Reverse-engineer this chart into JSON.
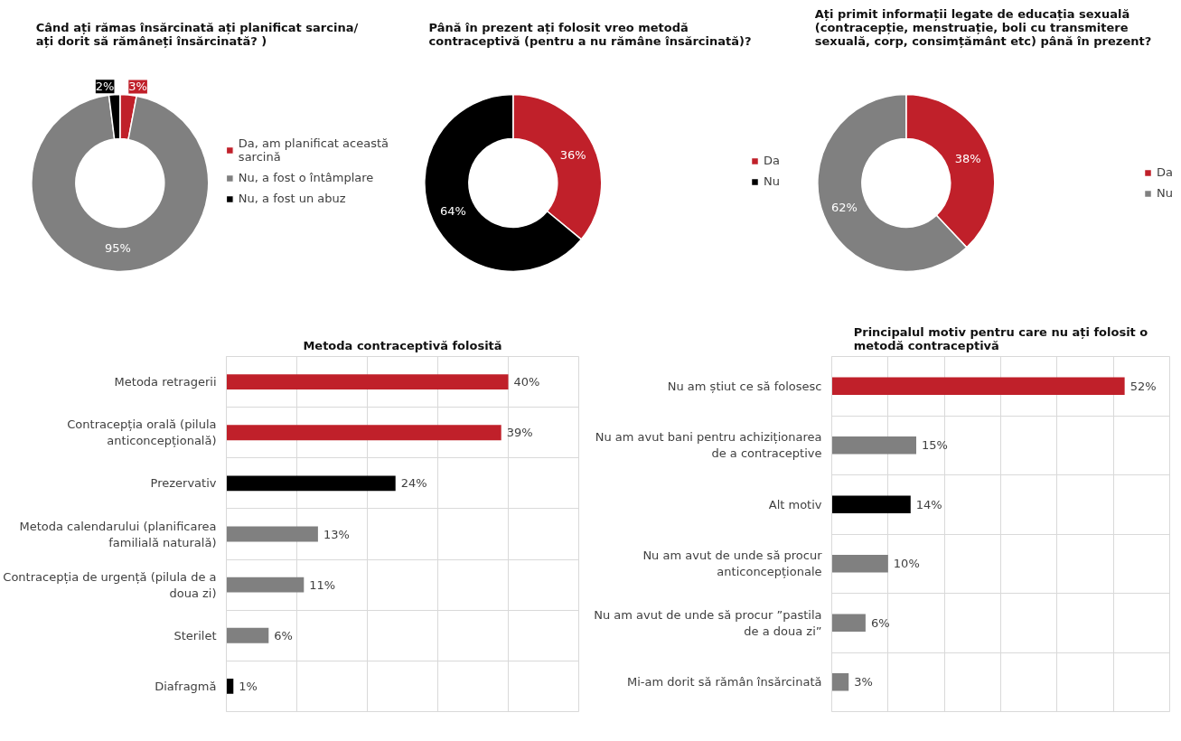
{
  "chart_data": [
    {
      "type": "donut",
      "title": "Când ați rămas însărcinată ați planificat sarcina/ ați dorit să rămâneți însărcinată? )",
      "categories": [
        "Da, am planificat această sarcină",
        "Nu, a fost o întâmplare",
        "Nu, a fost un abuz"
      ],
      "values": [
        3,
        95,
        2
      ],
      "colors": [
        "#c0202a",
        "#808080",
        "#000000"
      ],
      "value_labels": [
        "3%",
        "95%",
        "2%"
      ],
      "legend": "right"
    },
    {
      "type": "donut",
      "title": "Până în prezent ați folosit vreo metodă contraceptivă (pentru a nu rămâne însărcinată)?",
      "categories": [
        "Da",
        "Nu"
      ],
      "values": [
        36,
        64
      ],
      "colors": [
        "#c0202a",
        "#000000"
      ],
      "value_labels": [
        "36%",
        "64%"
      ],
      "legend": "right"
    },
    {
      "type": "donut",
      "title": "Ați primit informații legate de educația sexuală (contracepție, menstruație, boli cu transmitere sexuală, corp, consimțământ etc) până în prezent?",
      "categories": [
        "Da",
        "Nu"
      ],
      "values": [
        38,
        62
      ],
      "colors": [
        "#c0202a",
        "#808080"
      ],
      "value_labels": [
        "38%",
        "62%"
      ],
      "legend": "right"
    },
    {
      "type": "bar",
      "orientation": "horizontal",
      "title": "Metoda contraceptivă folosită",
      "categories": [
        "Metoda retragerii",
        "Contracepția orală (pilula anticoncepțională)",
        "Prezervativ",
        "Metoda calendarului (planificarea familială naturală)",
        "Contracepția de urgență (pilula de a doua zi)",
        "Sterilet",
        "Diafragmă"
      ],
      "values": [
        40,
        39,
        24,
        13,
        11,
        6,
        1
      ],
      "colors": [
        "#c0202a",
        "#c0202a",
        "#000000",
        "#808080",
        "#808080",
        "#808080",
        "#000000"
      ],
      "value_labels": [
        "40%",
        "39%",
        "24%",
        "13%",
        "11%",
        "6%",
        "1%"
      ],
      "xlim": [
        0,
        50
      ],
      "xticks": [
        {
          "value": 0,
          "label": null
        },
        {
          "value": 10,
          "label": null
        },
        {
          "value": 20,
          "label": null
        },
        {
          "value": 30,
          "label": null
        },
        {
          "value": 40,
          "label": null
        },
        {
          "value": 50,
          "label": null
        }
      ],
      "grid": true,
      "tick_labels": "y"
    },
    {
      "type": "bar",
      "orientation": "horizontal",
      "title": "Principalul motiv pentru care nu ați folosit o metodă contraceptivă",
      "categories": [
        "Nu am știut ce să folosesc",
        "Nu am avut bani pentru achiziționarea de a contraceptive",
        "Alt motiv",
        "Nu am avut de unde să procur anticoncepționale",
        "Nu am avut de unde să procur ”pastila de a doua zi”",
        "Mi-am dorit să rămân însărcinată"
      ],
      "values": [
        52,
        15,
        14,
        10,
        6,
        3
      ],
      "colors": [
        "#c0202a",
        "#808080",
        "#000000",
        "#808080",
        "#808080",
        "#808080"
      ],
      "value_labels": [
        "52%",
        "15%",
        "14%",
        "10%",
        "6%",
        "3%"
      ],
      "xlim": [
        0,
        60
      ],
      "xticks": [
        {
          "value": 0,
          "label": null
        },
        {
          "value": 10,
          "label": null
        },
        {
          "value": 20,
          "label": null
        },
        {
          "value": 30,
          "label": null
        },
        {
          "value": 40,
          "label": null
        },
        {
          "value": 50,
          "label": null
        },
        {
          "value": 60,
          "label": null
        }
      ],
      "grid": true,
      "tick_labels": "y"
    }
  ]
}
